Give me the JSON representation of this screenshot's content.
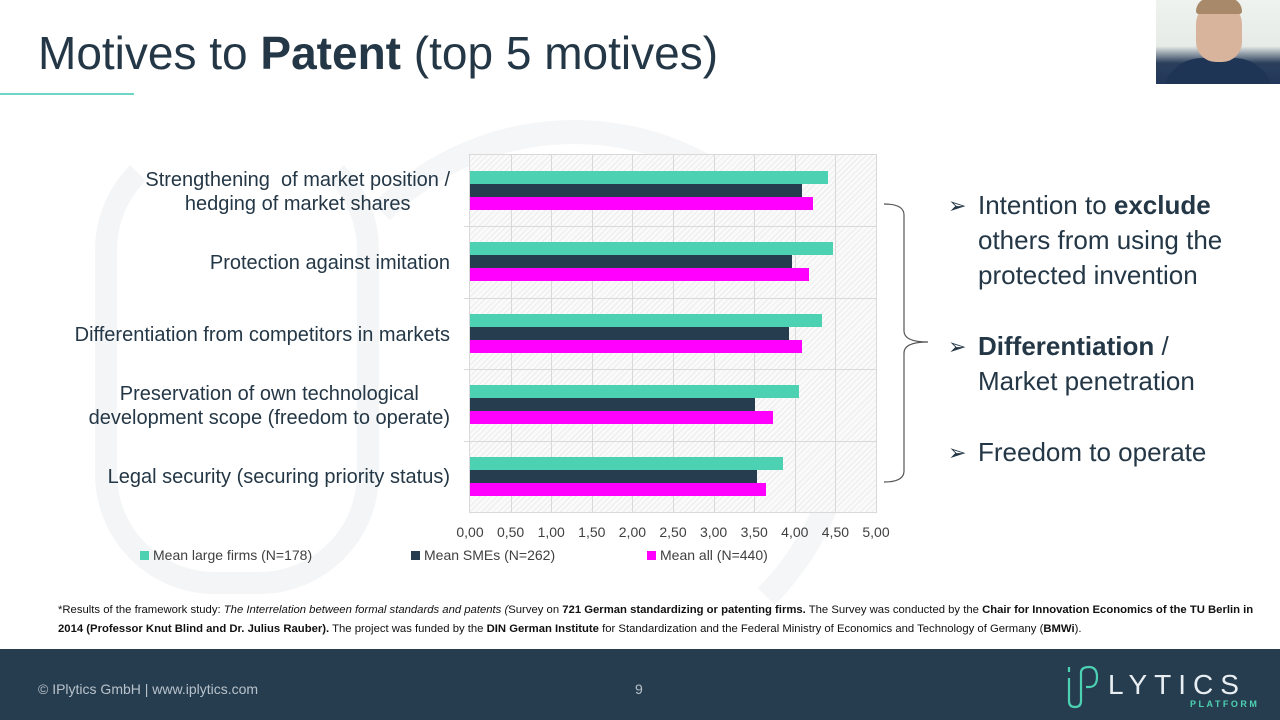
{
  "slide": {
    "title_pre": "Motives to ",
    "title_bold": "Patent",
    "title_post": " (top 5 motives)",
    "page_number": "9",
    "copyright": "© IPlytics GmbH | www.iplytics.com",
    "logo_word": "LYTICS",
    "logo_sub": "PLATFORM"
  },
  "chart_data": {
    "type": "bar",
    "orientation": "horizontal",
    "title": "",
    "xlabel": "",
    "ylabel": "",
    "xlim": [
      0,
      5
    ],
    "grid": true,
    "legend_position": "bottom",
    "categories": [
      "Strengthening  of market position / hedging of market shares",
      "Protection against imitation",
      "Differentiation from competitors in markets",
      "Preservation of own technological development scope (freedom to operate)",
      "Legal security (securing priority status)"
    ],
    "category_lines": [
      [
        "Strengthening  of market position /",
        "hedging of market shares"
      ],
      [
        "Protection against imitation"
      ],
      [
        "Differentiation from competitors in markets"
      ],
      [
        "Preservation of own technological",
        "development scope (freedom to operate)"
      ],
      [
        "Legal security (securing priority status)"
      ]
    ],
    "series": [
      {
        "name": "Mean large firms (N=178)",
        "color": "#4dd1b3",
        "values": [
          4.41,
          4.47,
          4.33,
          4.05,
          3.85
        ]
      },
      {
        "name": "Mean SMEs (N=262)",
        "color": "#263d4f",
        "values": [
          4.09,
          3.96,
          3.93,
          3.51,
          3.53
        ]
      },
      {
        "name": "Mean all (N=440)",
        "color": "#ff00ff",
        "values": [
          4.22,
          4.17,
          4.09,
          3.73,
          3.65
        ]
      }
    ],
    "x_ticks": [
      "0,00",
      "0,50",
      "1,00",
      "1,50",
      "2,00",
      "2,50",
      "3,00",
      "3,50",
      "4,00",
      "4,50",
      "5,00"
    ]
  },
  "bullets": [
    {
      "parts": [
        {
          "t": "Intention to ",
          "b": false
        },
        {
          "t": "exclude",
          "b": true
        },
        {
          "t": " others from using the protected invention",
          "b": false
        }
      ]
    },
    {
      "parts": [
        {
          "t": "Differentiation",
          "b": true
        },
        {
          "t": " / Market penetration",
          "b": false
        }
      ]
    },
    {
      "parts": [
        {
          "t": "Freedom to operate",
          "b": false
        }
      ]
    }
  ],
  "bullet_icon": "arrowhead-bullet-icon",
  "footnote": [
    {
      "t": "*Results of the framework study: ",
      "s": "n"
    },
    {
      "t": "The Interrelation between formal standards and patents (",
      "s": "i"
    },
    {
      "t": "Survey on ",
      "s": "n"
    },
    {
      "t": "721 German standardizing or patenting firms.",
      "s": "b"
    },
    {
      "t": " The Survey was conducted by the ",
      "s": "n"
    },
    {
      "t": "Chair for Innovation Economics of the TU Berlin in 2014 (Professor Knut Blind and Dr. Julius Rauber).",
      "s": "b"
    },
    {
      "t": " The project was funded by the ",
      "s": "n"
    },
    {
      "t": "DIN German Institute",
      "s": "b"
    },
    {
      "t": " for Standardization and the Federal Ministry of Economics and Technology of Germany (",
      "s": "n"
    },
    {
      "t": "BMWi",
      "s": "b"
    },
    {
      "t": ").",
      "s": "n"
    }
  ],
  "colors": {
    "accent": "#4dd1b3",
    "navy": "#263d4f",
    "magenta": "#ff00ff",
    "title_underline": "#6fd6c6"
  }
}
